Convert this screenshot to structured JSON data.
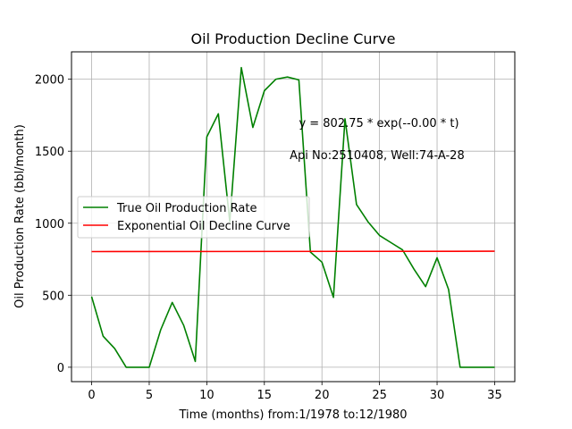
{
  "chart_data": {
    "type": "line",
    "title": "Oil Production Decline Curve",
    "xlabel": "Time (months) from:1/1978 to:12/1980",
    "ylabel": "Oil Production Rate (bbl/month)",
    "xlim": [
      -1.75,
      36.75
    ],
    "ylim": [
      -100,
      2190
    ],
    "xticks": [
      0,
      5,
      10,
      15,
      20,
      25,
      30,
      35
    ],
    "yticks": [
      0,
      500,
      1000,
      1500,
      2000
    ],
    "grid": true,
    "legend_position": "center-left",
    "annotations": [
      {
        "text": "y = 802.75 * exp(--0.00 * t)",
        "x": 18,
        "y": 1700
      },
      {
        "text": "Api No:2510408, Well:74-A-28",
        "x": 17.2,
        "y": 1475
      }
    ],
    "series": [
      {
        "name": "True Oil Production Rate",
        "color": "#008000",
        "x": [
          0,
          1,
          2,
          3,
          4,
          5,
          6,
          7,
          8,
          9,
          10,
          11,
          12,
          13,
          14,
          15,
          16,
          17,
          18,
          19,
          20,
          21,
          22,
          23,
          24,
          25,
          26,
          27,
          28,
          29,
          30,
          31,
          32,
          33,
          34,
          35
        ],
        "y": [
          490,
          215,
          130,
          0,
          0,
          0,
          260,
          450,
          290,
          40,
          1600,
          1760,
          1010,
          2080,
          1665,
          1920,
          2000,
          2015,
          1995,
          800,
          730,
          485,
          1725,
          1130,
          1010,
          915,
          865,
          815,
          680,
          560,
          760,
          540,
          0,
          0,
          0,
          0
        ]
      },
      {
        "name": "Exponential Oil Decline Curve",
        "color": "#ff0000",
        "x": [
          0,
          35
        ],
        "y": [
          802.75,
          805.5
        ]
      }
    ]
  }
}
